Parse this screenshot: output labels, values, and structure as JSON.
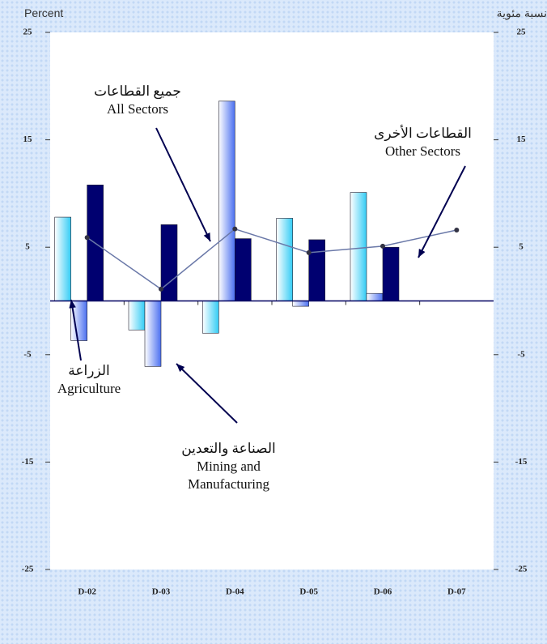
{
  "chart_data": {
    "type": "bar",
    "y_label_left": "Percent",
    "y_label_right": "نسبة مئوية",
    "categories": [
      "D-02",
      "D-03",
      "D-04",
      "D-05",
      "D-06",
      "D-07"
    ],
    "series": [
      {
        "name": "Agriculture",
        "label_ar": "الزراعة",
        "color": "#33ccf5",
        "values": [
          7.8,
          -2.7,
          -3.0,
          7.7,
          10.1,
          null
        ]
      },
      {
        "name": "Mining and Manufacturing",
        "label_ar": "الصناعة والتعدين",
        "color": "#4a6ff0",
        "values": [
          -3.7,
          -6.1,
          18.6,
          -0.5,
          0.7,
          null
        ]
      },
      {
        "name": "Other Sectors",
        "label_ar": "القطاعات الأخرى",
        "color": "#000070",
        "values": [
          10.8,
          7.1,
          5.8,
          5.7,
          5.0,
          null
        ]
      },
      {
        "name": "All Sectors",
        "label_ar": "جميع القطاعات",
        "color": "#6a78a8",
        "type": "line",
        "values": [
          5.9,
          1.1,
          6.7,
          4.5,
          5.1,
          6.6
        ]
      }
    ],
    "ylim": [
      -25,
      25
    ],
    "yticks": [
      25,
      15,
      5,
      -5,
      -15,
      -25
    ]
  }
}
